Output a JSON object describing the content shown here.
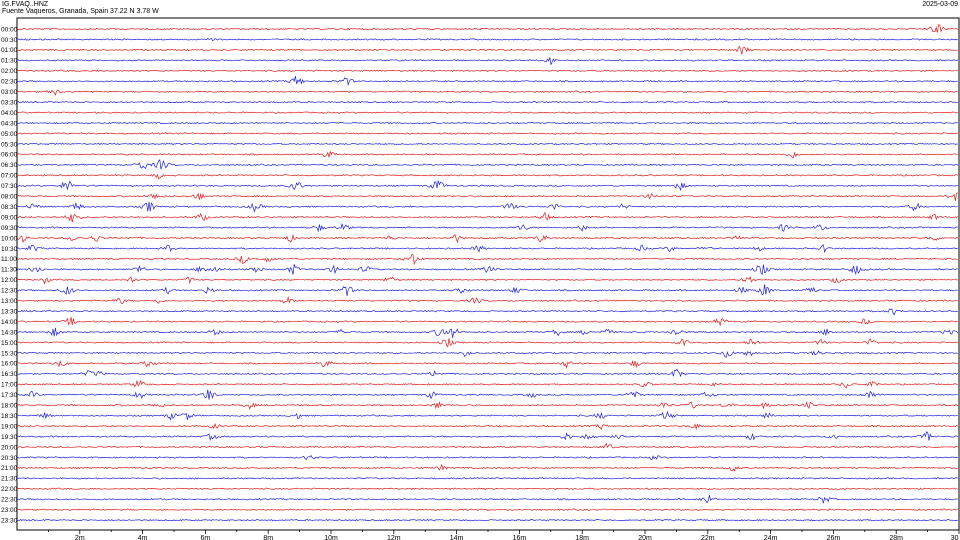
{
  "header": {
    "station": "IG.FVAQ..HNZ",
    "location": "Fuente Vaqueros, Granada, Spain  37.22 N 3.78 W",
    "date": "2025-03-09"
  },
  "colors": {
    "red": "#e41a1c",
    "blue": "#1f1fe0",
    "axis": "#000000"
  },
  "chart_data": {
    "type": "line",
    "title": "",
    "xlabel": "",
    "ylabel": "",
    "x_ticks": [
      "2m",
      "4m",
      "6m",
      "8m",
      "10m",
      "12m",
      "14m",
      "16m",
      "18m",
      "20m",
      "22m",
      "24m",
      "26m",
      "28m",
      "30"
    ],
    "xlim": [
      0,
      30
    ],
    "series": [
      {
        "label": "00:00",
        "color": "red",
        "events": [
          [
            29.3,
            1.0
          ]
        ]
      },
      {
        "label": "00:30",
        "color": "blue",
        "events": [
          [
            6.2,
            0.4
          ]
        ]
      },
      {
        "label": "01:00",
        "color": "red",
        "events": [
          [
            23.1,
            0.8
          ]
        ]
      },
      {
        "label": "01:30",
        "color": "blue",
        "events": [
          [
            17.0,
            0.6
          ]
        ]
      },
      {
        "label": "02:00",
        "color": "red",
        "events": []
      },
      {
        "label": "02:30",
        "color": "blue",
        "events": [
          [
            8.9,
            0.9
          ],
          [
            10.5,
            0.7
          ]
        ]
      },
      {
        "label": "03:00",
        "color": "red",
        "events": [
          [
            1.2,
            0.6
          ]
        ]
      },
      {
        "label": "03:30",
        "color": "blue",
        "events": []
      },
      {
        "label": "04:00",
        "color": "red",
        "events": []
      },
      {
        "label": "04:30",
        "color": "blue",
        "events": []
      },
      {
        "label": "05:00",
        "color": "red",
        "events": []
      },
      {
        "label": "05:30",
        "color": "blue",
        "events": []
      },
      {
        "label": "06:00",
        "color": "red",
        "events": [
          [
            9.9,
            0.7
          ],
          [
            24.7,
            0.6
          ]
        ]
      },
      {
        "label": "06:30",
        "color": "blue",
        "events": [
          [
            4.0,
            0.9
          ],
          [
            4.6,
            1.0
          ]
        ]
      },
      {
        "label": "07:00",
        "color": "red",
        "events": [
          [
            4.5,
            0.5
          ]
        ]
      },
      {
        "label": "07:30",
        "color": "blue",
        "events": [
          [
            1.6,
            1.0
          ],
          [
            8.9,
            0.9
          ],
          [
            13.4,
            1.0
          ],
          [
            21.1,
            0.7
          ]
        ]
      },
      {
        "label": "08:00",
        "color": "red",
        "events": [
          [
            4.4,
            0.6
          ],
          [
            5.8,
            0.6
          ],
          [
            20.2,
            0.5
          ],
          [
            29.9,
            0.9
          ]
        ]
      },
      {
        "label": "08:30",
        "color": "blue",
        "events": [
          [
            0.5,
            0.6
          ],
          [
            1.9,
            0.7
          ],
          [
            4.2,
            0.9
          ],
          [
            7.6,
            0.8
          ],
          [
            15.7,
            0.7
          ],
          [
            17.1,
            0.6
          ],
          [
            19.3,
            0.5
          ],
          [
            28.6,
            0.7
          ]
        ]
      },
      {
        "label": "09:00",
        "color": "red",
        "events": [
          [
            1.8,
            1.0
          ],
          [
            5.9,
            0.7
          ],
          [
            16.8,
            0.7
          ],
          [
            29.2,
            0.5
          ]
        ]
      },
      {
        "label": "09:30",
        "color": "blue",
        "events": [
          [
            9.6,
            0.6
          ],
          [
            10.4,
            0.7
          ],
          [
            16.1,
            0.6
          ],
          [
            18.0,
            0.5
          ],
          [
            24.4,
            0.6
          ],
          [
            25.6,
            0.6
          ]
        ]
      },
      {
        "label": "10:00",
        "color": "red",
        "events": [
          [
            0.2,
            0.6
          ],
          [
            1.8,
            0.6
          ],
          [
            2.5,
            0.6
          ],
          [
            8.7,
            0.6
          ],
          [
            11.9,
            0.5
          ],
          [
            14.0,
            0.7
          ],
          [
            16.7,
            0.7
          ],
          [
            22.9,
            0.5
          ],
          [
            29.2,
            0.5
          ]
        ]
      },
      {
        "label": "10:30",
        "color": "blue",
        "events": [
          [
            0.5,
            0.7
          ],
          [
            4.8,
            0.6
          ],
          [
            14.7,
            0.6
          ],
          [
            19.9,
            0.5
          ],
          [
            20.8,
            0.5
          ],
          [
            21.9,
            0.5
          ],
          [
            23.6,
            0.5
          ],
          [
            25.7,
            0.6
          ]
        ]
      },
      {
        "label": "11:00",
        "color": "red",
        "events": [
          [
            7.2,
            0.7
          ],
          [
            8.0,
            0.5
          ],
          [
            12.6,
            1.0
          ]
        ]
      },
      {
        "label": "11:30",
        "color": "blue",
        "events": [
          [
            0.6,
            0.7
          ],
          [
            3.9,
            0.7
          ],
          [
            5.9,
            0.7
          ],
          [
            6.3,
            0.7
          ],
          [
            7.6,
            0.6
          ],
          [
            8.8,
            0.8
          ],
          [
            10.1,
            0.6
          ],
          [
            11.1,
            0.7
          ],
          [
            15.0,
            0.7
          ],
          [
            23.7,
            1.0
          ],
          [
            26.7,
            0.9
          ]
        ]
      },
      {
        "label": "12:00",
        "color": "red",
        "events": [
          [
            0.9,
            0.6
          ],
          [
            3.6,
            0.6
          ],
          [
            5.5,
            0.5
          ],
          [
            11.9,
            0.6
          ],
          [
            23.3,
            0.7
          ],
          [
            26.1,
            0.6
          ]
        ]
      },
      {
        "label": "12:30",
        "color": "blue",
        "events": [
          [
            1.6,
            0.8
          ],
          [
            4.8,
            0.5
          ],
          [
            6.1,
            0.6
          ],
          [
            10.5,
            0.9
          ],
          [
            14.2,
            0.6
          ],
          [
            15.9,
            0.6
          ],
          [
            23.1,
            0.6
          ],
          [
            23.8,
            1.0
          ],
          [
            25.3,
            0.6
          ]
        ]
      },
      {
        "label": "13:00",
        "color": "red",
        "events": [
          [
            3.3,
            0.6
          ],
          [
            4.5,
            0.5
          ],
          [
            8.6,
            0.6
          ],
          [
            14.6,
            0.6
          ]
        ]
      },
      {
        "label": "13:30",
        "color": "blue",
        "events": [
          [
            27.9,
            0.6
          ]
        ]
      },
      {
        "label": "14:00",
        "color": "red",
        "events": [
          [
            1.7,
            0.7
          ],
          [
            22.4,
            0.7
          ],
          [
            27.0,
            0.5
          ]
        ]
      },
      {
        "label": "14:30",
        "color": "blue",
        "events": [
          [
            1.2,
            0.7
          ],
          [
            6.3,
            0.6
          ],
          [
            10.4,
            0.6
          ],
          [
            13.5,
            1.0
          ],
          [
            13.9,
            0.9
          ],
          [
            17.2,
            0.6
          ],
          [
            18.1,
            0.5
          ],
          [
            18.8,
            0.5
          ],
          [
            21.0,
            0.7
          ],
          [
            25.8,
            0.6
          ],
          [
            29.7,
            0.7
          ]
        ]
      },
      {
        "label": "15:00",
        "color": "red",
        "events": [
          [
            13.7,
            0.8
          ],
          [
            21.2,
            0.6
          ],
          [
            23.4,
            0.8
          ],
          [
            25.6,
            0.5
          ],
          [
            27.2,
            0.6
          ]
        ]
      },
      {
        "label": "15:30",
        "color": "blue",
        "events": [
          [
            14.3,
            0.6
          ],
          [
            22.6,
            0.8
          ],
          [
            23.3,
            0.6
          ],
          [
            25.5,
            0.6
          ]
        ]
      },
      {
        "label": "16:00",
        "color": "red",
        "events": [
          [
            1.4,
            0.6
          ],
          [
            4.2,
            0.7
          ],
          [
            9.8,
            0.7
          ],
          [
            17.5,
            0.6
          ],
          [
            19.7,
            0.6
          ]
        ]
      },
      {
        "label": "16:30",
        "color": "blue",
        "events": [
          [
            2.3,
            0.6
          ],
          [
            2.6,
            0.5
          ],
          [
            13.3,
            0.5
          ],
          [
            21.0,
            0.8
          ]
        ]
      },
      {
        "label": "17:00",
        "color": "red",
        "events": [
          [
            3.9,
            0.8
          ],
          [
            20.0,
            0.6
          ],
          [
            22.2,
            0.5
          ],
          [
            26.4,
            0.6
          ],
          [
            27.3,
            0.6
          ]
        ]
      },
      {
        "label": "17:30",
        "color": "blue",
        "events": [
          [
            0.5,
            0.6
          ],
          [
            3.9,
            0.7
          ],
          [
            6.1,
            1.0
          ],
          [
            13.2,
            0.6
          ],
          [
            16.4,
            0.5
          ],
          [
            19.6,
            0.8
          ],
          [
            22.0,
            0.6
          ],
          [
            27.2,
            0.7
          ]
        ]
      },
      {
        "label": "18:00",
        "color": "red",
        "events": [
          [
            4.5,
            0.5
          ],
          [
            7.4,
            0.6
          ],
          [
            13.4,
            0.6
          ],
          [
            20.6,
            0.6
          ],
          [
            21.5,
            0.6
          ],
          [
            22.6,
            0.6
          ],
          [
            23.8,
            0.5
          ],
          [
            25.2,
            0.6
          ]
        ]
      },
      {
        "label": "18:30",
        "color": "blue",
        "events": [
          [
            0.9,
            0.5
          ],
          [
            4.9,
            0.6
          ],
          [
            5.4,
            0.7
          ],
          [
            8.9,
            0.6
          ],
          [
            18.6,
            0.6
          ],
          [
            20.7,
            0.9
          ],
          [
            23.9,
            0.5
          ]
        ]
      },
      {
        "label": "19:00",
        "color": "red",
        "events": [
          [
            6.3,
            0.5
          ],
          [
            18.6,
            0.5
          ],
          [
            21.6,
            0.5
          ]
        ]
      },
      {
        "label": "19:30",
        "color": "blue",
        "events": [
          [
            6.2,
            0.6
          ],
          [
            17.5,
            0.6
          ],
          [
            18.2,
            0.6
          ],
          [
            19.2,
            0.7
          ],
          [
            23.4,
            0.6
          ],
          [
            26.0,
            0.6
          ],
          [
            29.0,
            0.8
          ]
        ]
      },
      {
        "label": "20:00",
        "color": "red",
        "events": [
          [
            18.8,
            0.6
          ]
        ]
      },
      {
        "label": "20:30",
        "color": "blue",
        "events": [
          [
            9.3,
            0.5
          ],
          [
            20.3,
            0.5
          ]
        ]
      },
      {
        "label": "21:00",
        "color": "red",
        "events": [
          [
            13.5,
            0.5
          ],
          [
            22.8,
            0.6
          ]
        ]
      },
      {
        "label": "21:30",
        "color": "blue",
        "events": []
      },
      {
        "label": "22:00",
        "color": "red",
        "events": []
      },
      {
        "label": "22:30",
        "color": "blue",
        "events": [
          [
            22.0,
            0.8
          ],
          [
            25.7,
            0.7
          ]
        ]
      },
      {
        "label": "23:00",
        "color": "red",
        "events": []
      },
      {
        "label": "23:30",
        "color": "blue",
        "events": []
      }
    ]
  }
}
